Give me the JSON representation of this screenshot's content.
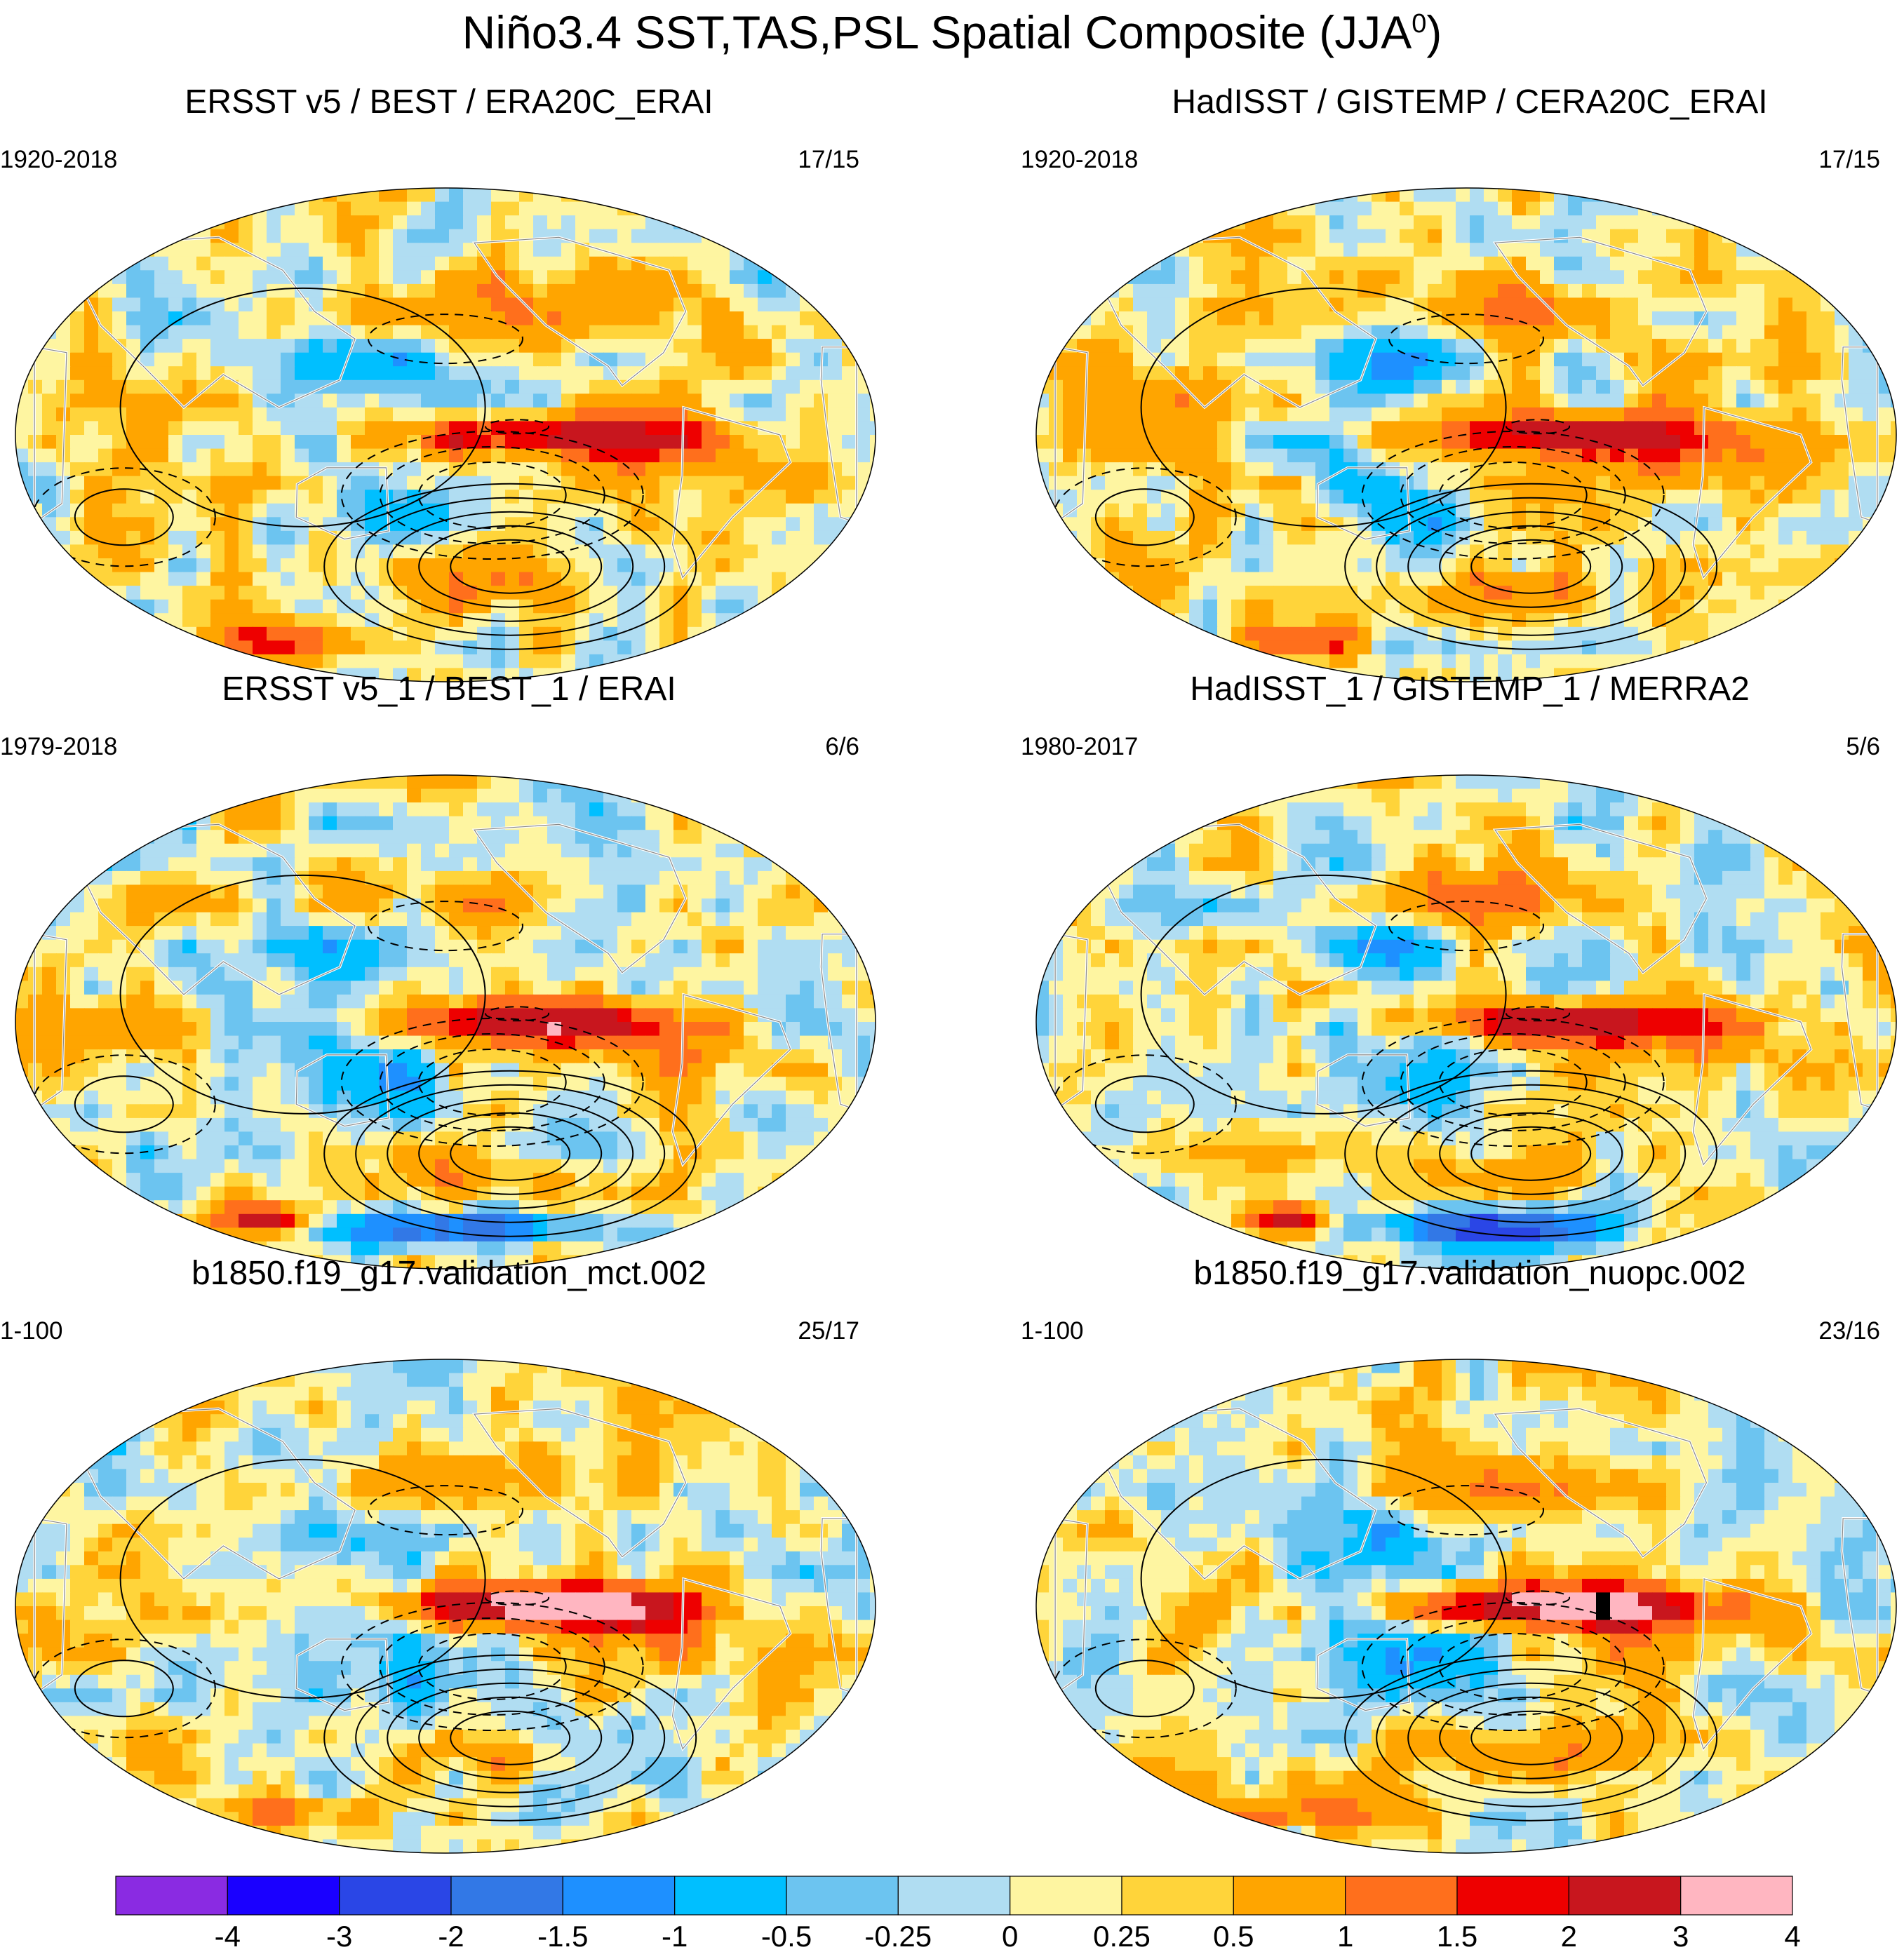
{
  "title": {
    "text": "Niño3.4 SST,TAS,PSL Spatial Composite (JJA",
    "superscript": "0",
    "close": ")"
  },
  "panels": [
    {
      "title": "ERSST v5 / BEST / ERA20C_ERAI",
      "years": "1920-2018",
      "count": "17/15",
      "seed": 11,
      "coldAnt": false,
      "ninoStrength": 2.3
    },
    {
      "title": "HadISST / GISTEMP / CERA20C_ERAI",
      "years": "1920-2018",
      "count": "17/15",
      "seed": 23,
      "coldAnt": false,
      "ninoStrength": 2.3
    },
    {
      "title": "ERSST v5_1 / BEST_1 / ERAI",
      "years": "1979-2018",
      "count": "6/6",
      "seed": 37,
      "coldAnt": true,
      "ninoStrength": 2.5
    },
    {
      "title": "HadISST_1 / GISTEMP_1 / MERRA2",
      "years": "1980-2017",
      "count": "5/6",
      "seed": 41,
      "coldAnt": true,
      "ninoStrength": 2.5
    },
    {
      "title": "b1850.f19_g17.validation_mct.002",
      "years": "1-100",
      "count": "25/17",
      "seed": 53,
      "coldAnt": false,
      "ninoStrength": 3.9
    },
    {
      "title": "b1850.f19_g17.validation_nuopc.002",
      "years": "1-100",
      "count": "23/16",
      "seed": 67,
      "coldAnt": false,
      "ninoStrength": 3.9
    }
  ],
  "chart_data": {
    "type": "heatmap",
    "projection": "Robinson (Pacific-centered)",
    "variable": "SST / TAS shading, PSL contours",
    "contour_styles": {
      "positive": "solid",
      "negative": "dashed"
    },
    "colorbar": {
      "levels": [
        "-4",
        "-3",
        "-2",
        "-1.5",
        "-1",
        "-0.5",
        "-0.25",
        "0",
        "0.25",
        "0.5",
        "1",
        "1.5",
        "2",
        "3",
        "4"
      ],
      "colors": [
        "#8a2be2",
        "#1a00ff",
        "#2a46e6",
        "#3278e6",
        "#1e90ff",
        "#00bfff",
        "#6cc4f0",
        "#b0ddf2",
        "#fef5a1",
        "#ffd43a",
        "#ffa500",
        "#ff6f1c",
        "#ee0000",
        "#c8161e",
        "#ffb6c1"
      ],
      "position": "bottom"
    }
  }
}
